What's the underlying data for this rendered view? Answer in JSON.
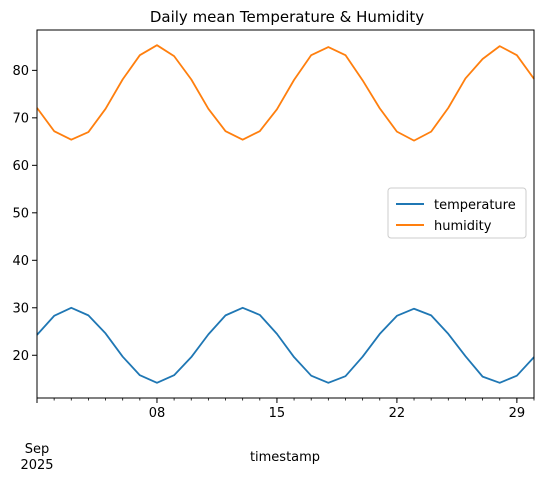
{
  "chart_data": {
    "type": "line",
    "title": "Daily mean Temperature & Humidity",
    "xlabel": "timestamp",
    "ylabel": "",
    "x": [
      "2025-09-01",
      "2025-09-02",
      "2025-09-03",
      "2025-09-04",
      "2025-09-05",
      "2025-09-06",
      "2025-09-07",
      "2025-09-08",
      "2025-09-09",
      "2025-09-10",
      "2025-09-11",
      "2025-09-12",
      "2025-09-13",
      "2025-09-14",
      "2025-09-15",
      "2025-09-16",
      "2025-09-17",
      "2025-09-18",
      "2025-09-19",
      "2025-09-20",
      "2025-09-21",
      "2025-09-22",
      "2025-09-23",
      "2025-09-24",
      "2025-09-25",
      "2025-09-26",
      "2025-09-27",
      "2025-09-28",
      "2025-09-29",
      "2025-09-30"
    ],
    "series": [
      {
        "name": "temperature",
        "color": "#1f77b4",
        "values": [
          24.3,
          28.3,
          30.0,
          28.4,
          24.6,
          19.7,
          15.8,
          14.2,
          15.8,
          19.6,
          24.4,
          28.4,
          30.0,
          28.5,
          24.5,
          19.6,
          15.7,
          14.2,
          15.6,
          19.7,
          24.5,
          28.3,
          29.8,
          28.4,
          24.5,
          19.8,
          15.5,
          14.2,
          15.7,
          19.6
        ]
      },
      {
        "name": "humidity",
        "color": "#ff7f0e",
        "values": [
          72.1,
          67.2,
          65.4,
          67.0,
          71.9,
          78.1,
          83.2,
          85.3,
          83.0,
          78.1,
          71.9,
          67.2,
          65.4,
          67.2,
          71.8,
          78.0,
          83.2,
          84.9,
          83.2,
          77.9,
          72.0,
          67.1,
          65.2,
          67.1,
          72.1,
          78.3,
          82.4,
          85.1,
          83.2,
          78.2
        ]
      }
    ],
    "ylim": [
      11.0,
      88.5
    ],
    "yticks": [
      20,
      30,
      40,
      50,
      60,
      70,
      80
    ],
    "ytick_labels": [
      "20",
      "30",
      "40",
      "50",
      "60",
      "70",
      "80"
    ],
    "xticks": [
      "2025-09-08",
      "2025-09-15",
      "2025-09-22",
      "2025-09-29"
    ],
    "xtick_labels": [
      "08",
      "15",
      "22",
      "29"
    ],
    "x_secondary_label": [
      "Sep",
      "2025"
    ],
    "legend_placement": "center-right",
    "grid": false
  }
}
